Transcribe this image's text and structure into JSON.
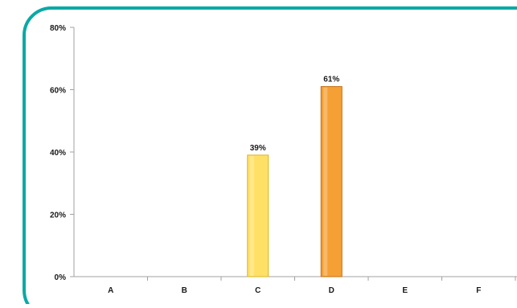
{
  "chart_data": {
    "type": "bar",
    "categories": [
      "A",
      "B",
      "C",
      "D",
      "E",
      "F"
    ],
    "values": [
      0,
      0,
      39,
      61,
      0,
      0
    ],
    "data_labels": [
      "",
      "",
      "39%",
      "61%",
      "",
      ""
    ],
    "ylim": [
      0,
      80
    ],
    "yticks": [
      0,
      20,
      40,
      60,
      80
    ],
    "ytick_labels": [
      "0%",
      "20%",
      "40%",
      "60%",
      "80%"
    ],
    "title": "",
    "xlabel": "",
    "ylabel": "",
    "grid": false,
    "bar_colors": [
      "#f5a640",
      "#f5a640",
      "#ffe066",
      "#f5a035",
      "#f5a640",
      "#f5a640"
    ],
    "bar_edge_colors": [
      "#c47a1a",
      "#c47a1a",
      "#d9b520",
      "#c46d10",
      "#c47a1a",
      "#c47a1a"
    ]
  },
  "frame": {
    "border_color": "#0aa9a6"
  }
}
